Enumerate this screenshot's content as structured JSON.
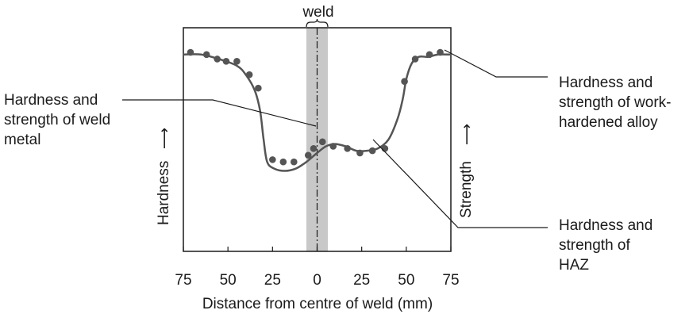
{
  "chart_data": {
    "type": "line",
    "xlabel": "Distance from centre of weld (mm)",
    "ylabel_left": "Hardness",
    "ylabel_right": "Strength",
    "ylabel_arrow": "⟶",
    "x_tick_labels": [
      "75",
      "50",
      "25",
      "0",
      "25",
      "50",
      "75"
    ],
    "xlim": [
      -75,
      75
    ],
    "ylim": [
      0,
      100
    ],
    "weld_label": "weld",
    "weld_band": [
      -6,
      6
    ],
    "series": [
      {
        "curve": [
          [
            -75,
            88
          ],
          [
            -65,
            88
          ],
          [
            -55,
            86
          ],
          [
            -45,
            83
          ],
          [
            -40,
            79
          ],
          [
            -35,
            72
          ],
          [
            -32,
            63
          ],
          [
            -30,
            50
          ],
          [
            -28,
            40
          ],
          [
            -24,
            37
          ],
          [
            -18,
            36
          ],
          [
            -12,
            37
          ],
          [
            -6,
            40
          ],
          [
            0,
            44
          ],
          [
            5,
            47
          ],
          [
            10,
            48
          ],
          [
            16,
            47
          ],
          [
            22,
            45
          ],
          [
            28,
            45
          ],
          [
            34,
            46
          ],
          [
            40,
            50
          ],
          [
            45,
            59
          ],
          [
            48,
            68
          ],
          [
            50,
            77
          ],
          [
            53,
            84
          ],
          [
            57,
            87
          ],
          [
            62,
            87
          ],
          [
            68,
            88
          ],
          [
            75,
            88
          ]
        ],
        "points": [
          [
            -71,
            89
          ],
          [
            -62,
            88
          ],
          [
            -56,
            86
          ],
          [
            -51,
            85
          ],
          [
            -45,
            85
          ],
          [
            -38,
            79
          ],
          [
            -33,
            73
          ],
          [
            -25,
            41
          ],
          [
            -19,
            40
          ],
          [
            -13,
            40
          ],
          [
            -5,
            43
          ],
          [
            -2,
            46
          ],
          [
            3,
            49
          ],
          [
            9,
            47
          ],
          [
            17,
            46
          ],
          [
            24,
            44
          ],
          [
            31,
            45
          ],
          [
            38,
            46
          ],
          [
            49,
            76
          ],
          [
            55,
            86
          ],
          [
            63,
            88
          ],
          [
            69,
            89
          ]
        ]
      }
    ],
    "annotations": [
      {
        "lines": [
          "Hardness and",
          "strength of weld",
          "metal"
        ]
      },
      {
        "lines": [
          "Hardness and",
          "strength of work-",
          "hardened alloy"
        ]
      },
      {
        "lines": [
          "Hardness and",
          "strength of",
          "HAZ"
        ]
      }
    ],
    "colors": {
      "curve": "#555555",
      "points": "#555555",
      "weld_band": "#c8c8c8",
      "axes": "#1a1a1a"
    }
  }
}
